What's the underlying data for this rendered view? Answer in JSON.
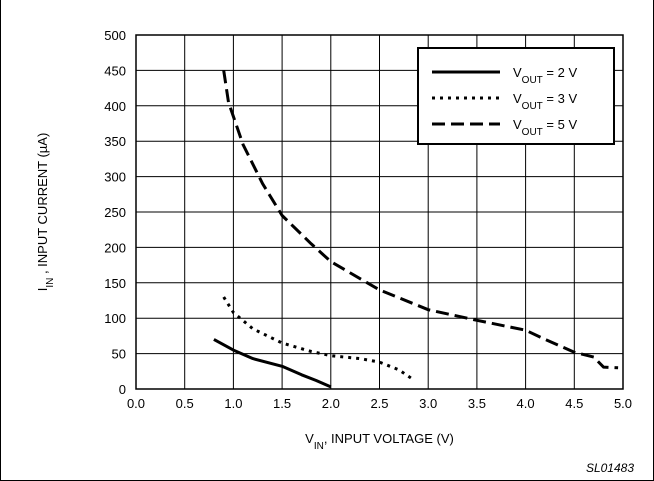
{
  "chart_data": {
    "type": "line",
    "xlabel": "V_IN, INPUT VOLTAGE (V)",
    "ylabel": "I_IN , INPUT CURRENT (µA)",
    "xlim": [
      0.0,
      5.0
    ],
    "ylim": [
      0,
      500
    ],
    "x_ticks": [
      "0.0",
      "0.5",
      "1.0",
      "1.5",
      "2.0",
      "2.5",
      "3.0",
      "3.5",
      "4.0",
      "4.5",
      "5.0"
    ],
    "y_ticks": [
      "0",
      "50",
      "100",
      "150",
      "200",
      "250",
      "300",
      "350",
      "400",
      "450",
      "500"
    ],
    "grid": true,
    "legend_placement": "top-right",
    "series": [
      {
        "name": "VOUT = 2 V",
        "legend": {
          "main": "V",
          "sub": "OUT",
          "rest": " = 2 V"
        },
        "dash": "solid",
        "points": [
          [
            0.8,
            70
          ],
          [
            1.0,
            55
          ],
          [
            1.2,
            43
          ],
          [
            1.5,
            32
          ],
          [
            1.7,
            20
          ],
          [
            1.85,
            12
          ],
          [
            2.0,
            3
          ]
        ]
      },
      {
        "name": "VOUT = 3 V",
        "legend": {
          "main": "V",
          "sub": "OUT",
          "rest": " = 3 V"
        },
        "dash": "dotted",
        "points": [
          [
            0.9,
            130
          ],
          [
            1.0,
            108
          ],
          [
            1.2,
            85
          ],
          [
            1.5,
            65
          ],
          [
            1.8,
            53
          ],
          [
            2.0,
            47
          ],
          [
            2.3,
            43
          ],
          [
            2.5,
            38
          ],
          [
            2.7,
            27
          ],
          [
            2.85,
            13
          ]
        ]
      },
      {
        "name": "VOUT = 5 V",
        "legend": {
          "main": "V",
          "sub": "OUT",
          "rest": " = 5 V"
        },
        "dash": "dashed",
        "points": [
          [
            0.9,
            450
          ],
          [
            0.95,
            405
          ],
          [
            1.1,
            345
          ],
          [
            1.3,
            290
          ],
          [
            1.5,
            245
          ],
          [
            1.8,
            205
          ],
          [
            2.0,
            180
          ],
          [
            2.5,
            140
          ],
          [
            3.0,
            112
          ],
          [
            3.5,
            97
          ],
          [
            4.0,
            83
          ],
          [
            4.2,
            70
          ],
          [
            4.5,
            52
          ],
          [
            4.7,
            45
          ],
          [
            4.8,
            31
          ],
          [
            4.95,
            30
          ]
        ]
      }
    ],
    "figure_id": "SL01483"
  }
}
